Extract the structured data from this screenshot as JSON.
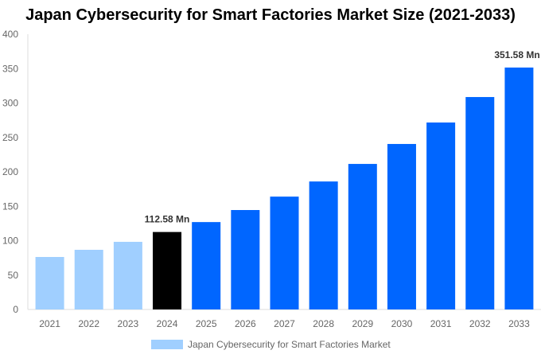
{
  "chart_data": {
    "type": "bar",
    "title": "Japan Cybersecurity for Smart Factories Market Size (2021-2033)",
    "categories": [
      "2021",
      "2022",
      "2023",
      "2024",
      "2025",
      "2026",
      "2027",
      "2028",
      "2029",
      "2030",
      "2031",
      "2032",
      "2033"
    ],
    "series": [
      {
        "name": "Japan Cybersecurity for Smart Factories Market",
        "values": [
          76.3,
          86.7,
          98.3,
          112.58,
          127.0,
          144.5,
          164.0,
          186.0,
          211.5,
          240.5,
          271.7,
          308.7,
          351.58
        ]
      }
    ],
    "data_labels": {
      "2024": "112.58 Mn",
      "2033": "351.58 Mn"
    },
    "ylim": [
      0,
      400
    ],
    "yticks": [
      0,
      50,
      100,
      150,
      200,
      250,
      300,
      350,
      400
    ],
    "grid": false,
    "legend": "bottom",
    "colors": {
      "historical": "#a0cfff",
      "base_year": "#000000",
      "forecast": "#0066ff"
    }
  }
}
